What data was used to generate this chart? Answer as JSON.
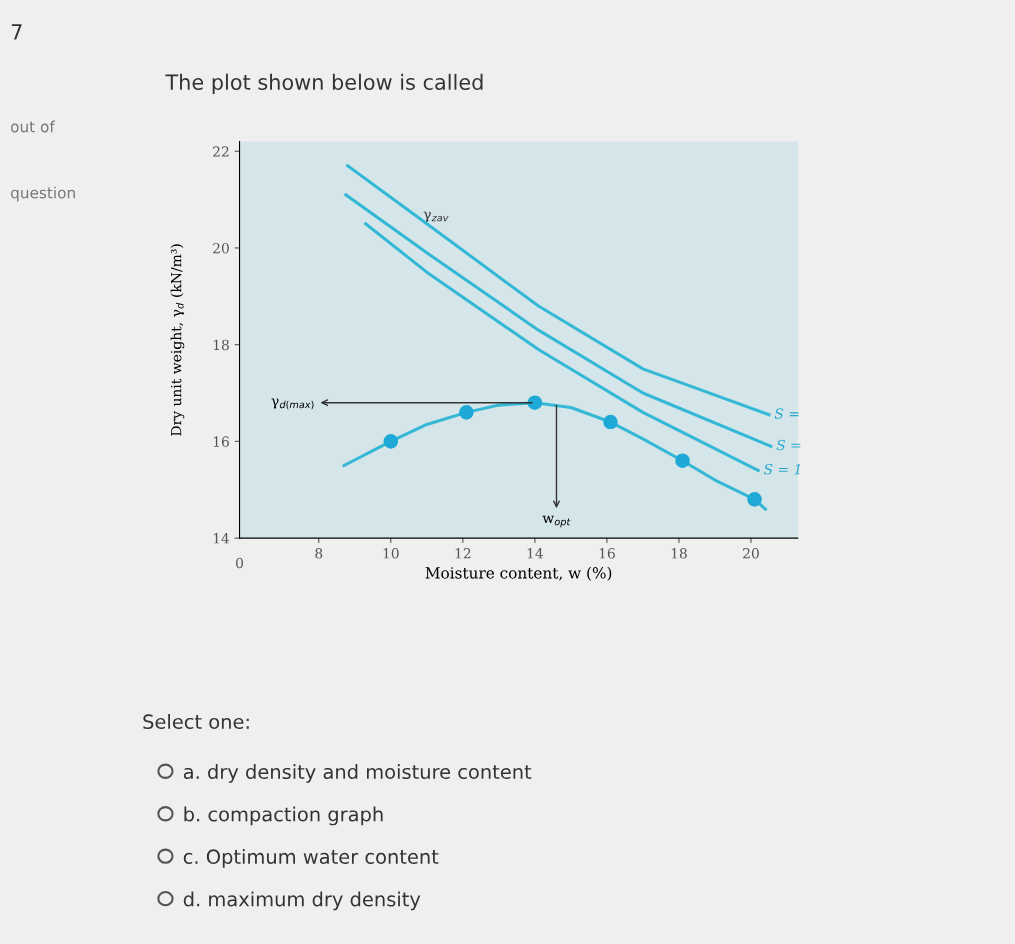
{
  "chart_data": {
    "type": "line",
    "title": "The plot shown below is called",
    "xlabel": "Moisture content, w (%)",
    "ylabel": "Dry unit weight, γ$_{d}$ (kN/m³)",
    "xlim": [
      5.8,
      21.3
    ],
    "xticks": [
      8,
      10,
      12,
      14,
      16,
      18,
      20
    ],
    "ylim": [
      14,
      22.2
    ],
    "yticks": [
      14,
      16,
      18,
      20,
      22
    ],
    "grid": false,
    "legend": false,
    "line_style": "solid",
    "series": [
      {
        "name": "S =",
        "color": "#35b8d6",
        "x": [
          8.8,
          11,
          14.1,
          17,
          20.5
        ],
        "values": [
          21.7,
          20.5,
          18.8,
          17.5,
          16.55
        ]
      },
      {
        "name": "S =",
        "color": "#35b8d6",
        "x": [
          8.75,
          11,
          14.1,
          17,
          20.55
        ],
        "values": [
          21.1,
          19.9,
          18.3,
          17.0,
          15.9
        ]
      },
      {
        "name": "S = 1",
        "color": "#35b8d6",
        "x": [
          9.3,
          11,
          14.1,
          17,
          20.2
        ],
        "values": [
          20.5,
          19.5,
          17.9,
          16.6,
          15.4
        ]
      },
      {
        "color": "#35b8d6",
        "x": [
          8.7,
          10,
          11,
          12.1,
          13,
          14,
          15,
          16.1,
          17,
          18.1,
          19,
          20.1,
          20.4
        ],
        "values": [
          15.5,
          16.0,
          16.35,
          16.6,
          16.75,
          16.8,
          16.7,
          16.4,
          16.05,
          15.6,
          15.2,
          14.8,
          14.6
        ]
      },
      {
        "type": "scatter",
        "marker": "circle",
        "color": "#1fa9d6",
        "x": [
          10,
          12.1,
          14,
          16.1,
          18.1,
          20.1
        ],
        "values": [
          16.0,
          16.6,
          16.8,
          16.4,
          15.6,
          14.8
        ]
      }
    ],
    "annotations": [
      {
        "text": "γ$_{zav}$",
        "x": 10.9,
        "y": 20.6
      },
      {
        "text": "γ$_{d(max)}$",
        "x": 14,
        "y": 16.8
      },
      {
        "text": "w$_{opt}$",
        "x": 14.6,
        "y": 16.8
      },
      "0",
      "7",
      "out of",
      "question",
      "Select one:",
      "a. dry density and moisture content",
      "b. compaction graph",
      "c. Optimum water content",
      "d. maximum dry density"
    ]
  }
}
